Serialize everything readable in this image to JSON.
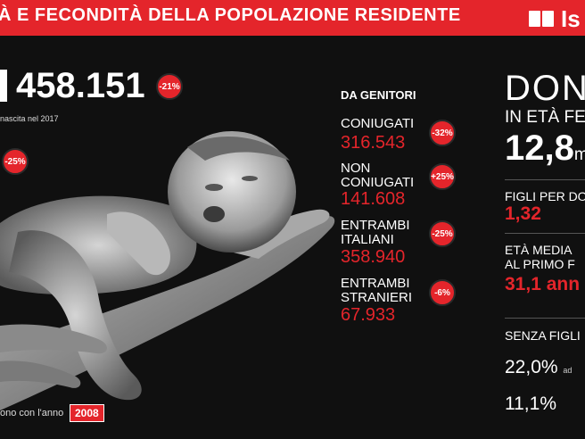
{
  "header": {
    "title": "À E FECONDITÀ DELLA POPOLAZIONE RESIDENTE",
    "logo_text": "Is"
  },
  "births": {
    "total": "458.151",
    "change": "-21%",
    "note": "nascita nel 2017",
    "secondary_change": "-25%",
    "footer_note": "ono con l'anno",
    "footer_year": "2008"
  },
  "parents": {
    "section_title": "DA GENITORI",
    "items": [
      {
        "label_lines": [
          "CONIUGATI"
        ],
        "value": "316.543",
        "change": "-32%"
      },
      {
        "label_lines": [
          "NON",
          "CONIUGATI"
        ],
        "value": "141.608",
        "change": "+25%"
      },
      {
        "label_lines": [
          "ENTRAMBI",
          "ITALIANI"
        ],
        "value": "358.940",
        "change": "-25%"
      },
      {
        "label_lines": [
          "ENTRAMBI",
          "STRANIERI"
        ],
        "value": "67.933",
        "change": "-6%"
      }
    ]
  },
  "women": {
    "title": "DON",
    "subtitle": "IN ETÀ FE",
    "number": "12,8",
    "number_unit": "m",
    "children_label": "FIGLI PER DO",
    "children_value": "1,32",
    "age_label_1": "ETÀ MEDIA",
    "age_label_2": "AL PRIMO F",
    "age_value": "31,1 ann",
    "no_children_label": "SENZA FIGLI",
    "no_children_value_1": "22,0%",
    "no_children_suffix_1": "ad",
    "no_children_value_2": "11,1%"
  },
  "colors": {
    "accent": "#e4252b",
    "background": "#101010"
  }
}
